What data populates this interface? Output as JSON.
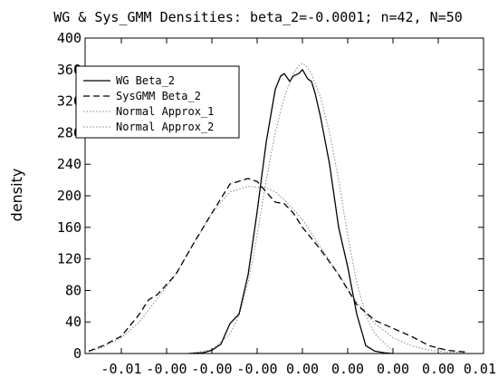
{
  "chart_data": {
    "type": "line",
    "title": "WG & Sys_GMM Densities: beta_2=-0.0001; n=42, N=50",
    "xlabel": "",
    "ylabel": "density",
    "ylim": [
      0,
      400
    ],
    "xlim": [
      -0.012,
      0.01
    ],
    "y_ticks": [
      0,
      40,
      80,
      120,
      160,
      200,
      240,
      280,
      320,
      360,
      400
    ],
    "x_tick_values": [
      -0.01,
      -0.0075,
      -0.005,
      -0.0025,
      0.0,
      0.0025,
      0.005,
      0.0075,
      0.01
    ],
    "x_tick_labels": [
      "-0.01",
      "-0.00",
      "-0.00",
      "-0.00",
      "0.00",
      "0.00",
      "0.00",
      "0.00",
      "0.01"
    ],
    "grid": false,
    "legend_position": "top-left",
    "series": [
      {
        "name": "WG Beta_2",
        "style": "solid",
        "color": "#000000",
        "x": [
          -0.0063,
          -0.0055,
          -0.005,
          -0.0045,
          -0.004,
          -0.0035,
          -0.003,
          -0.0025,
          -0.002,
          -0.0015,
          -0.0012,
          -0.001,
          -0.0007,
          -0.0005,
          -0.0002,
          0.0,
          0.0003,
          0.0005,
          0.0007,
          0.001,
          0.0015,
          0.002,
          0.0025,
          0.003,
          0.0035,
          0.004,
          0.0045,
          0.005
        ],
        "y": [
          0,
          1,
          4,
          12,
          38,
          50,
          100,
          180,
          268,
          335,
          352,
          355,
          345,
          352,
          355,
          360,
          348,
          345,
          330,
          300,
          240,
          160,
          110,
          50,
          10,
          3,
          1,
          0
        ]
      },
      {
        "name": "SysGMM Beta_2",
        "style": "dashed",
        "color": "#000000",
        "x": [
          -0.0118,
          -0.011,
          -0.01,
          -0.009,
          -0.0085,
          -0.008,
          -0.007,
          -0.006,
          -0.005,
          -0.004,
          -0.003,
          -0.0025,
          -0.002,
          -0.0015,
          -0.001,
          -0.0005,
          0.0,
          0.001,
          0.002,
          0.003,
          0.004,
          0.005,
          0.006,
          0.007,
          0.008,
          0.009
        ],
        "y": [
          3,
          10,
          22,
          50,
          68,
          75,
          100,
          140,
          178,
          215,
          222,
          218,
          205,
          192,
          190,
          178,
          160,
          132,
          100,
          62,
          42,
          32,
          22,
          10,
          4,
          2
        ]
      },
      {
        "name": "Normal Approx_1",
        "style": "dotted",
        "color": "#888888",
        "x": [
          -0.006,
          -0.005,
          -0.004,
          -0.0035,
          -0.003,
          -0.0025,
          -0.002,
          -0.0015,
          -0.001,
          -0.0005,
          -0.0002,
          0.0,
          0.0002,
          0.0005,
          0.001,
          0.0015,
          0.002,
          0.0025,
          0.003,
          0.0035,
          0.004,
          0.005
        ],
        "y": [
          1,
          5,
          25,
          48,
          90,
          150,
          220,
          280,
          325,
          355,
          365,
          368,
          365,
          355,
          325,
          280,
          220,
          150,
          90,
          48,
          25,
          3
        ]
      },
      {
        "name": "Normal Approx_2",
        "style": "dotted",
        "color": "#888888",
        "x": [
          -0.0118,
          -0.011,
          -0.01,
          -0.009,
          -0.008,
          -0.007,
          -0.006,
          -0.005,
          -0.004,
          -0.003,
          -0.002,
          -0.0015,
          -0.001,
          0.0,
          0.001,
          0.002,
          0.003,
          0.004,
          0.005,
          0.006,
          0.007,
          0.008,
          0.009
        ],
        "y": [
          2,
          8,
          20,
          40,
          70,
          100,
          140,
          178,
          205,
          212,
          210,
          205,
          195,
          170,
          135,
          100,
          65,
          38,
          20,
          10,
          4,
          2,
          1
        ]
      }
    ]
  }
}
